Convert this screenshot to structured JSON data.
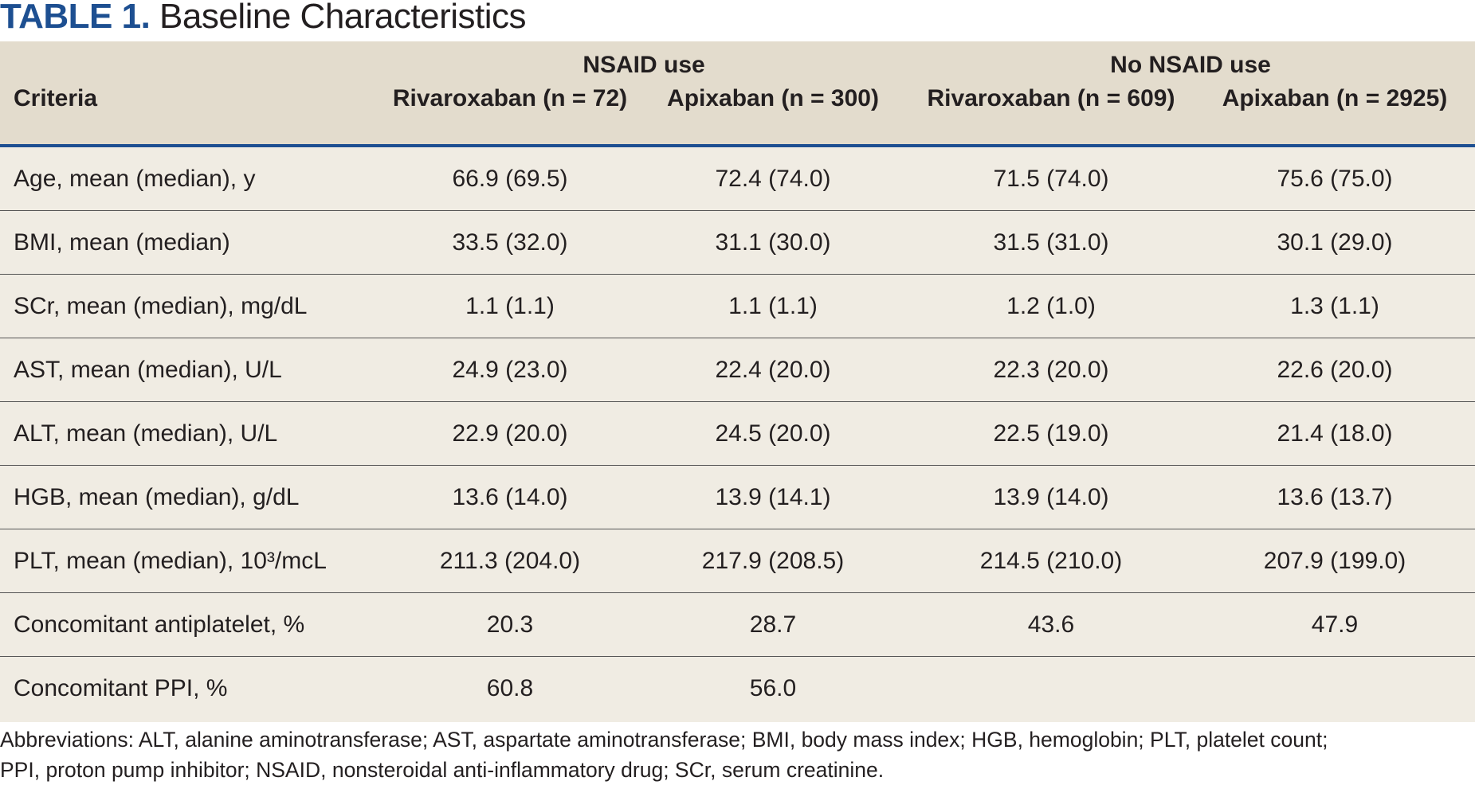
{
  "title": {
    "label": "TABLE 1.",
    "text": "Baseline Characteristics"
  },
  "header": {
    "groups": [
      "NSAID use",
      "No NSAID use"
    ],
    "criteria_label": "Criteria",
    "columns": [
      "Rivaroxaban (n = 72)",
      "Apixaban (n = 300)",
      "Rivaroxaban (n = 609)",
      "Apixaban (n = 2925)"
    ]
  },
  "rows": [
    {
      "criteria": "Age, mean (median), y",
      "values": [
        "66.9 (69.5)",
        "72.4 (74.0)",
        "71.5 (74.0)",
        "75.6 (75.0)"
      ]
    },
    {
      "criteria": "BMI, mean (median)",
      "values": [
        "33.5 (32.0)",
        "31.1 (30.0)",
        "31.5 (31.0)",
        "30.1 (29.0)"
      ]
    },
    {
      "criteria": "SCr, mean (median), mg/dL",
      "values": [
        "1.1 (1.1)",
        "1.1 (1.1)",
        "1.2 (1.0)",
        "1.3 (1.1)"
      ]
    },
    {
      "criteria": "AST, mean (median), U/L",
      "values": [
        "24.9 (23.0)",
        "22.4 (20.0)",
        "22.3 (20.0)",
        "22.6 (20.0)"
      ]
    },
    {
      "criteria": "ALT, mean (median), U/L",
      "values": [
        "22.9 (20.0)",
        "24.5 (20.0)",
        "22.5 (19.0)",
        "21.4 (18.0)"
      ]
    },
    {
      "criteria": "HGB, mean (median), g/dL",
      "values": [
        "13.6 (14.0)",
        "13.9 (14.1)",
        "13.9 (14.0)",
        "13.6 (13.7)"
      ]
    },
    {
      "criteria": "PLT, mean (median), 10³/mcL",
      "values": [
        "211.3 (204.0)",
        "217.9 (208.5)",
        "214.5 (210.0)",
        "207.9 (199.0)"
      ]
    },
    {
      "criteria": "Concomitant antiplatelet, %",
      "values": [
        "20.3",
        "28.7",
        "43.6",
        "47.9"
      ]
    },
    {
      "criteria": "Concomitant PPI, %",
      "values": [
        "60.8",
        "56.0",
        "",
        ""
      ]
    }
  ],
  "footnote": {
    "line1": "Abbreviations: ALT, alanine aminotransferase; AST, aspartate aminotransferase; BMI, body mass index; HGB, hemoglobin; PLT, platelet count;",
    "line2": "PPI, proton pump inhibitor; NSAID, nonsteroidal anti-inflammatory drug; SCr, serum creatinine."
  },
  "colors": {
    "title_accent": "#1d4f91",
    "header_bg": "#e3dccd",
    "body_bg": "#f0ece3",
    "rule": "#1d4f91"
  }
}
